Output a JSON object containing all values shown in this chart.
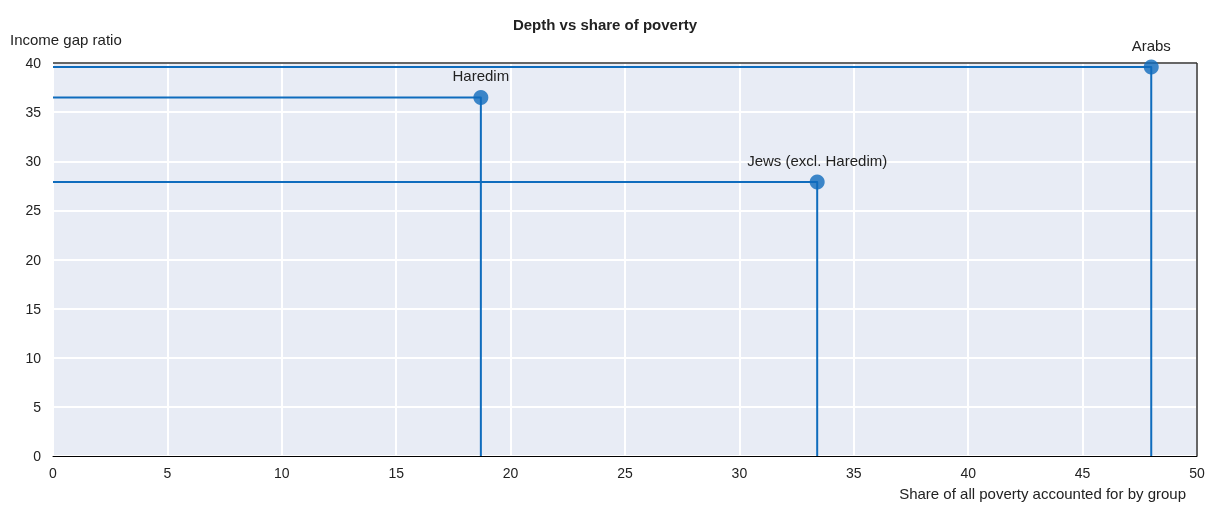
{
  "chart_data": {
    "type": "scatter",
    "title": "Depth vs share of poverty",
    "xlabel": "Share of all poverty accounted for by group",
    "ylabel": "Income gap ratio",
    "series": [
      {
        "type": "line",
        "color": "#0f6cbd",
        "marker": "none",
        "x": [
          0,
          18.7,
          18.7
        ],
        "values": [
          36.5,
          36.5,
          0
        ]
      },
      {
        "type": "line",
        "color": "#0f6cbd",
        "marker": "none",
        "x": [
          0,
          33.4,
          33.4
        ],
        "values": [
          27.9,
          27.9,
          0
        ]
      },
      {
        "type": "line",
        "color": "#0f6cbd",
        "marker": "none",
        "x": [
          0,
          48.0,
          48.0
        ],
        "values": [
          39.6,
          39.6,
          0
        ]
      },
      {
        "color": "#0f6cbd",
        "marker": "circle",
        "x": [
          18.7,
          33.4,
          48.0
        ],
        "values": [
          36.5,
          27.9,
          39.6
        ]
      }
    ],
    "xlim": [
      0,
      50
    ],
    "xticks": [
      0,
      5,
      10,
      15,
      20,
      25,
      30,
      35,
      40,
      45,
      50
    ],
    "ylim": [
      0,
      40
    ],
    "yticks": [
      0,
      5,
      10,
      15,
      20,
      25,
      30,
      35,
      40
    ],
    "grid": true,
    "annotations": [
      {
        "text": "Haredim",
        "x": 18.7,
        "y": 36.5
      },
      {
        "text": "Jews (excl. Haredim)",
        "x": 33.4,
        "y": 27.9
      },
      {
        "text": "Arabs",
        "x": 48.0,
        "y": 39.6
      }
    ]
  }
}
